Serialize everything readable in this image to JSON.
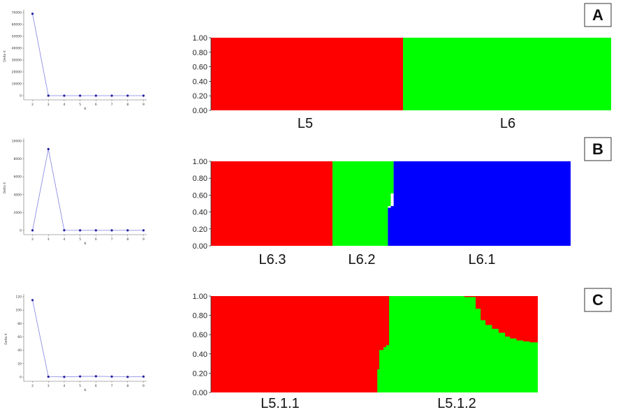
{
  "chart_data": [
    {
      "id": "A",
      "panel_label": "A",
      "deltak": {
        "type": "line",
        "ylabel": "Delta K",
        "xlabel": "K",
        "x": [
          2,
          3,
          4,
          5,
          6,
          7,
          8,
          9
        ],
        "y": [
          69000,
          20,
          10,
          10,
          10,
          10,
          10,
          10
        ],
        "ylim": [
          0,
          70000
        ],
        "yticks": [
          "0",
          "10000",
          "20000",
          "30000",
          "40000",
          "50000",
          "60000",
          "70000"
        ],
        "xticks": [
          "2",
          "3",
          "4",
          "5",
          "6",
          "7",
          "8",
          "9"
        ],
        "color": "#3333cc"
      },
      "structure": {
        "type": "bar",
        "yticks": [
          "0.00",
          "0.20",
          "0.40",
          "0.60",
          "0.80",
          "1.00"
        ],
        "ylim": [
          0,
          1
        ],
        "groups": [
          "L5",
          "L6"
        ],
        "colors": [
          "#ff0000",
          "#00ff00"
        ],
        "segments": [
          [
            0.48,
            1.0,
            0.0
          ],
          [
            0.52,
            0.0,
            1.0
          ]
        ]
      }
    },
    {
      "id": "B",
      "panel_label": "B",
      "deltak": {
        "type": "line",
        "ylabel": "Delta K",
        "xlabel": "K",
        "x": [
          2,
          3,
          4,
          5,
          6,
          7,
          8,
          9
        ],
        "y": [
          10,
          9100,
          20,
          10,
          10,
          10,
          10,
          10
        ],
        "ylim": [
          0,
          10000
        ],
        "yticks": [
          "0",
          "2000",
          "4000",
          "6000",
          "8000",
          "10000"
        ],
        "xticks": [
          "2",
          "3",
          "4",
          "5",
          "6",
          "7",
          "8",
          "9"
        ],
        "color": "#3333cc"
      },
      "structure": {
        "type": "bar",
        "yticks": [
          "0.00",
          "0.20",
          "0.40",
          "0.60",
          "0.80",
          "1.00"
        ],
        "ylim": [
          0,
          1
        ],
        "groups": [
          "L6.3",
          "L6.2",
          "L6.1"
        ],
        "colors": [
          "#ff0000",
          "#00ff00",
          "#0000ff"
        ]
      }
    },
    {
      "id": "C",
      "panel_label": "C",
      "deltak": {
        "type": "line",
        "ylabel": "Delta K",
        "xlabel": "K",
        "x": [
          2,
          3,
          4,
          5,
          6,
          7,
          8,
          9
        ],
        "y": [
          115,
          0.5,
          0.3,
          1,
          1.2,
          0.8,
          0.3,
          0.8
        ],
        "ylim": [
          0,
          120
        ],
        "yticks": [
          "0",
          "20",
          "40",
          "60",
          "80",
          "100",
          "120"
        ],
        "xticks": [
          "2",
          "3",
          "4",
          "5",
          "6",
          "7",
          "8",
          "9"
        ],
        "color": "#3333cc"
      },
      "structure": {
        "type": "bar",
        "yticks": [
          "0.00",
          "0.20",
          "0.40",
          "0.60",
          "0.80",
          "1.00"
        ],
        "ylim": [
          0,
          1
        ],
        "groups": [
          "L5.1.1",
          "L5.1.2"
        ],
        "colors": [
          "#ff0000",
          "#00ff00"
        ]
      }
    }
  ]
}
